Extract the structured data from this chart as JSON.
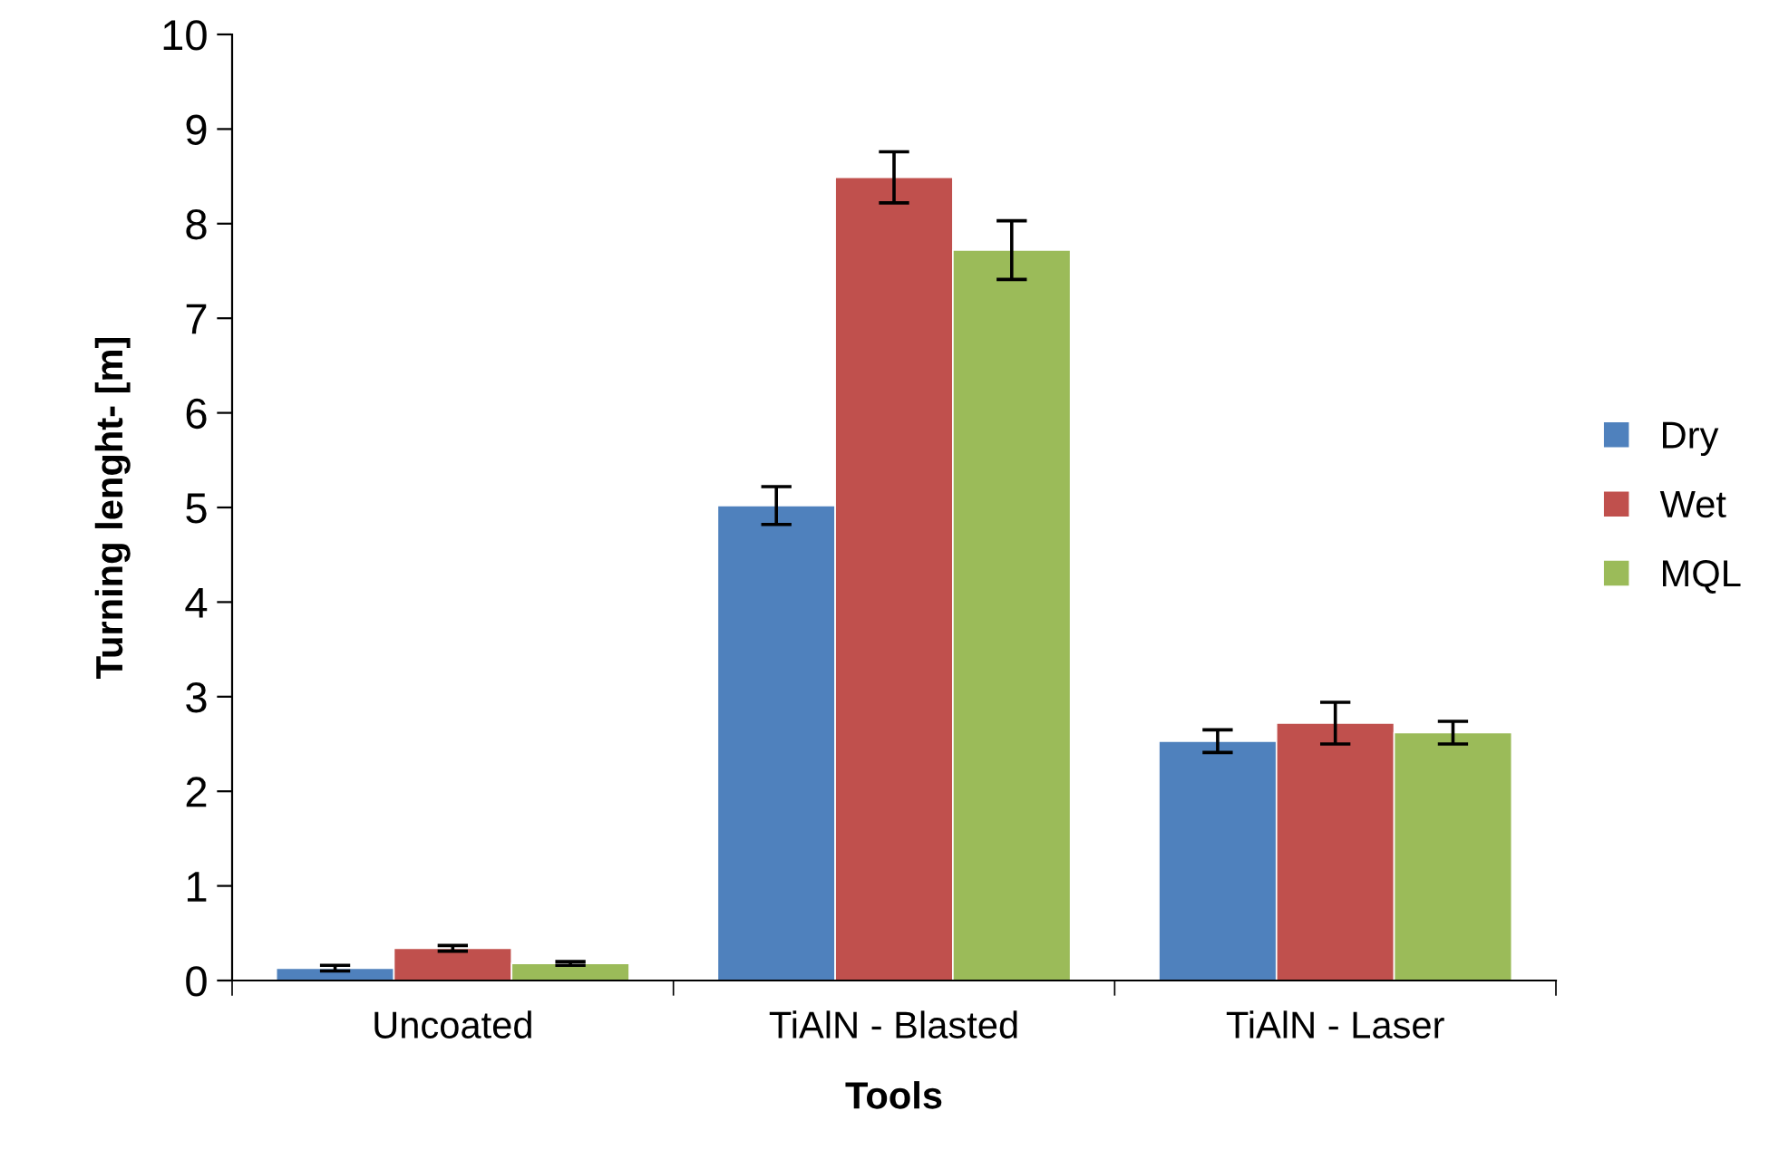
{
  "chart_data": {
    "type": "bar",
    "xlabel": "Tools",
    "ylabel": "Turning lenght- [m]",
    "categories": [
      "Uncoated",
      "TiAlN - Blasted",
      "TiAlN - Laser"
    ],
    "series": [
      {
        "name": "Dry",
        "color": "#4f81bd",
        "values": [
          0.13,
          5.02,
          2.53
        ],
        "errors": [
          0.03,
          0.2,
          0.12
        ]
      },
      {
        "name": "Wet",
        "color": "#c0504d",
        "values": [
          0.34,
          8.49,
          2.72
        ],
        "errors": [
          0.03,
          0.27,
          0.22
        ]
      },
      {
        "name": "MQL",
        "color": "#9bbb59",
        "values": [
          0.18,
          7.72,
          2.62
        ],
        "errors": [
          0.02,
          0.31,
          0.12
        ]
      }
    ],
    "ylim": [
      0,
      10
    ],
    "yticks": [
      0,
      1,
      2,
      3,
      4,
      5,
      6,
      7,
      8,
      9,
      10
    ],
    "grid": false,
    "legend": "right"
  }
}
